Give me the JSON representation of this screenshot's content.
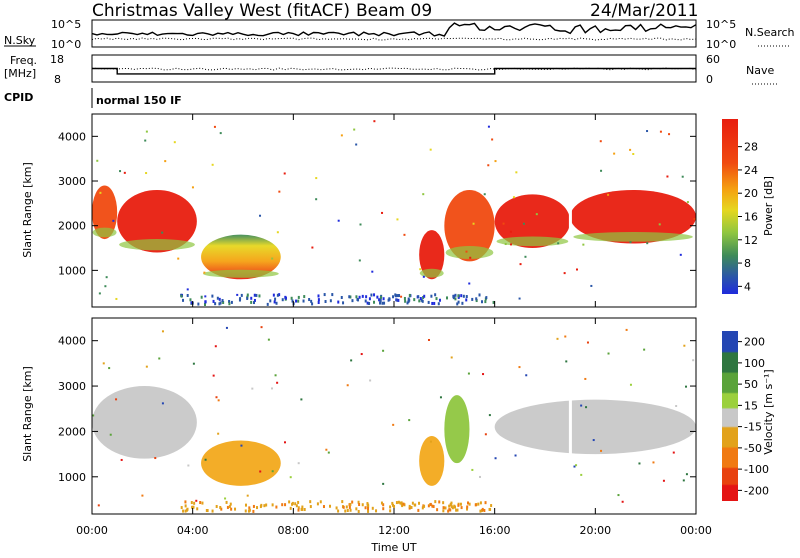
{
  "header": {
    "station": "Christmas Valley West (fitACF)",
    "beam": "Beam 09",
    "date": "24/Mar/2011"
  },
  "strip": {
    "nsky_label": "N.Sky",
    "nsky_ticks": [
      "10^5",
      "10^0"
    ],
    "nsearch_label": "N.Search",
    "nsearch_ticks": [
      "10^5",
      "10^0"
    ],
    "freq_label_1": "Freq.",
    "freq_label_2": "[MHz]",
    "freq_ticks": [
      "18",
      "8"
    ],
    "nave_label": "Nave",
    "nave_ticks": [
      "60",
      "0"
    ],
    "cpid_label": "CPID",
    "cpid_value": "normal 150 IF"
  },
  "panels": {
    "power": {
      "ylabel": "Slant Range [km]",
      "cb_label": "Power [dB]",
      "cb_ticks": [
        "28",
        "24",
        "20",
        "16",
        "12",
        "8",
        "4"
      ]
    },
    "velocity": {
      "ylabel": "Slant Range [km]",
      "cb_label": "Velocity [m s⁻¹]",
      "cb_ticks": [
        "200",
        "100",
        "50",
        "15",
        "-15",
        "-50",
        "-100",
        "-200"
      ]
    }
  },
  "xaxis": {
    "label": "Time UT",
    "ticks": [
      "00:00",
      "04:00",
      "08:00",
      "12:00",
      "16:00",
      "20:00",
      "00:00"
    ]
  },
  "yticks": [
    "4000",
    "3000",
    "2000",
    "1000"
  ],
  "colors": {
    "power_scale": [
      "#e81d0f",
      "#f04a10",
      "#f5a011",
      "#e6d71f",
      "#8fc640",
      "#3e8b59",
      "#2a56a8",
      "#1f2bdc"
    ],
    "velocity_scale": [
      "#2446b3",
      "#2e7640",
      "#5aa33a",
      "#9bd03d",
      "#c8c8c8",
      "#e2a21b",
      "#f07a12",
      "#e8420f",
      "#e41414"
    ]
  },
  "chart_data": [
    {
      "type": "heatmap",
      "title": "Power",
      "x_range": [
        "00:00",
        "24:00"
      ],
      "y_range": [
        180,
        4500
      ],
      "ylabel": "Slant Range [km]",
      "colorbar": "Power [dB]",
      "colorbar_range": [
        0,
        30
      ],
      "regions": [
        {
          "t_start": "00:00",
          "t_end": "01:00",
          "range": [
            1700,
            2900
          ],
          "power_db": 24
        },
        {
          "t_start": "01:00",
          "t_end": "04:10",
          "range": [
            1400,
            2800
          ],
          "power_db": 28
        },
        {
          "t_start": "04:20",
          "t_end": "07:30",
          "range": [
            800,
            1800
          ],
          "power_db": 22
        },
        {
          "t_start": "13:00",
          "t_end": "14:00",
          "range": [
            800,
            1900
          ],
          "power_db": 26
        },
        {
          "t_start": "14:00",
          "t_end": "16:00",
          "range": [
            1200,
            2800
          ],
          "power_db": 24
        },
        {
          "t_start": "16:00",
          "t_end": "19:00",
          "range": [
            1500,
            2700
          ],
          "power_db": 26
        },
        {
          "t_start": "19:00",
          "t_end": "24:00",
          "range": [
            1600,
            2800
          ],
          "power_db": 26
        }
      ]
    },
    {
      "type": "heatmap",
      "title": "Velocity",
      "x_range": [
        "00:00",
        "24:00"
      ],
      "y_range": [
        180,
        4500
      ],
      "ylabel": "Slant Range [km]",
      "colorbar": "Velocity [m s⁻¹]",
      "colorbar_range": [
        -200,
        200
      ],
      "regions": [
        {
          "t_start": "00:00",
          "t_end": "04:10",
          "range": [
            1400,
            3000
          ],
          "velocity": 0
        },
        {
          "t_start": "04:20",
          "t_end": "07:30",
          "range": [
            800,
            1800
          ],
          "velocity": -40
        },
        {
          "t_start": "13:00",
          "t_end": "14:00",
          "range": [
            800,
            1900
          ],
          "velocity": -40
        },
        {
          "t_start": "14:00",
          "t_end": "15:00",
          "range": [
            1300,
            2800
          ],
          "velocity": 20
        },
        {
          "t_start": "16:00",
          "t_end": "24:00",
          "range": [
            1500,
            2700
          ],
          "velocity": 0
        }
      ]
    },
    {
      "type": "line",
      "title": "Frequency",
      "ylabel": "Freq. [MHz]",
      "ylim": [
        8,
        18
      ],
      "x": [
        "00:00",
        "01:00",
        "01:00",
        "16:00",
        "16:00",
        "24:00"
      ],
      "y": [
        13,
        13,
        11,
        11,
        13,
        13
      ]
    }
  ]
}
